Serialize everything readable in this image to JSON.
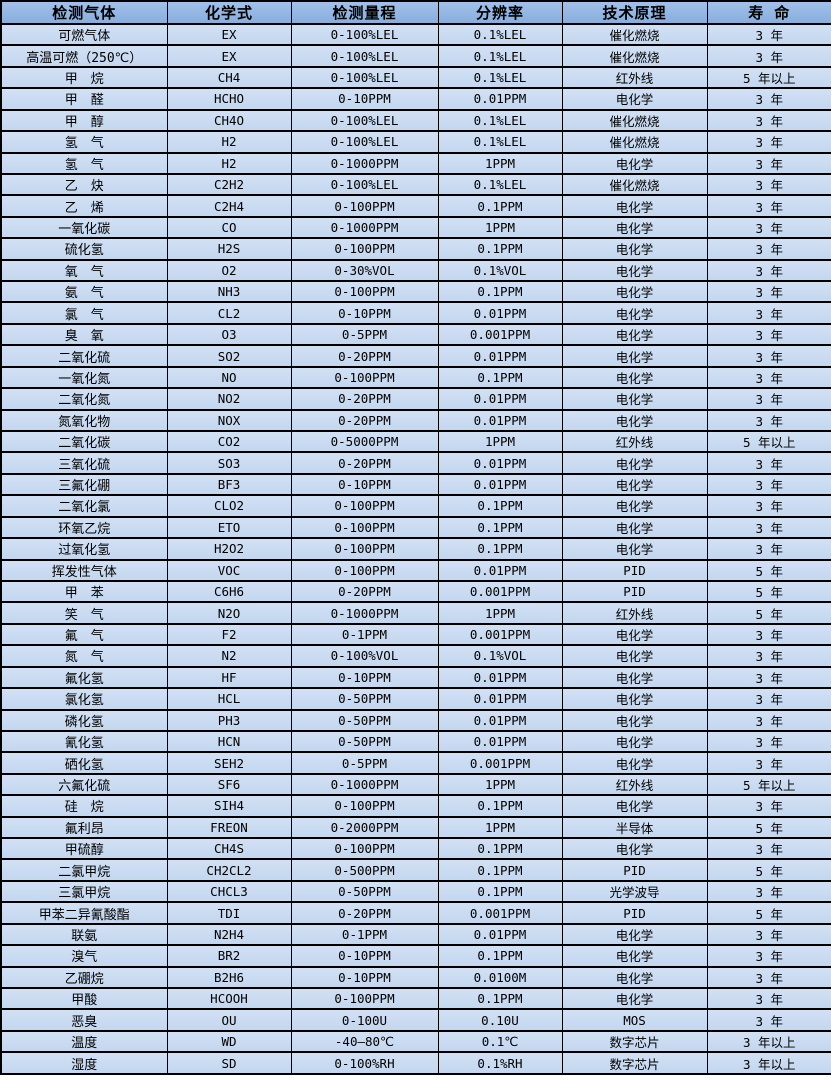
{
  "colors": {
    "header_bg": "#8DB4E2",
    "row_bg": "#C5D9F1",
    "border": "#000000",
    "text": "#000000"
  },
  "table": {
    "headers": [
      "检测气体",
      "化学式",
      "检测量程",
      "分辨率",
      "技术原理",
      "寿 命"
    ],
    "column_names": [
      "gas-name",
      "formula",
      "range",
      "resolution",
      "principle",
      "lifespan"
    ],
    "rows": [
      [
        "可燃气体",
        "EX",
        "0-100%LEL",
        "0.1%LEL",
        "催化燃烧",
        "3 年"
      ],
      [
        "高温可燃（250℃）",
        "EX",
        "0-100%LEL",
        "0.1%LEL",
        "催化燃烧",
        "3 年"
      ],
      [
        "甲　烷",
        "CH4",
        "0-100%LEL",
        "0.1%LEL",
        "红外线",
        "5 年以上"
      ],
      [
        "甲　醛",
        "HCHO",
        "0-10PPM",
        "0.01PPM",
        "电化学",
        "3 年"
      ],
      [
        "甲　醇",
        "CH4O",
        "0-100%LEL",
        "0.1%LEL",
        "催化燃烧",
        "3 年"
      ],
      [
        "氢　气",
        "H2",
        "0-100%LEL",
        "0.1%LEL",
        "催化燃烧",
        "3 年"
      ],
      [
        "氢　气",
        "H2",
        "0-1000PPM",
        "1PPM",
        "电化学",
        "3 年"
      ],
      [
        "乙　炔",
        "C2H2",
        "0-100%LEL",
        "0.1%LEL",
        "催化燃烧",
        "3 年"
      ],
      [
        "乙　烯",
        "C2H4",
        "0-100PPM",
        "0.1PPM",
        "电化学",
        "3 年"
      ],
      [
        "一氧化碳",
        "CO",
        "0-1000PPM",
        "1PPM",
        "电化学",
        "3 年"
      ],
      [
        "硫化氢",
        "H2S",
        "0-100PPM",
        "0.1PPM",
        "电化学",
        "3 年"
      ],
      [
        "氧　气",
        "O2",
        "0-30%VOL",
        "0.1%VOL",
        "电化学",
        "3 年"
      ],
      [
        "氨　气",
        "NH3",
        "0-100PPM",
        "0.1PPM",
        "电化学",
        "3 年"
      ],
      [
        "氯　气",
        "CL2",
        "0-10PPM",
        "0.01PPM",
        "电化学",
        "3 年"
      ],
      [
        "臭　氧",
        "O3",
        "0-5PPM",
        "0.001PPM",
        "电化学",
        "3 年"
      ],
      [
        "二氧化硫",
        "SO2",
        "0-20PPM",
        "0.01PPM",
        "电化学",
        "3 年"
      ],
      [
        "一氧化氮",
        "NO",
        "0-100PPM",
        "0.1PPM",
        "电化学",
        "3 年"
      ],
      [
        "二氧化氮",
        "NO2",
        "0-20PPM",
        "0.01PPM",
        "电化学",
        "3 年"
      ],
      [
        "氮氧化物",
        "NOX",
        "0-20PPM",
        "0.01PPM",
        "电化学",
        "3 年"
      ],
      [
        "二氧化碳",
        "CO2",
        "0-5000PPM",
        "1PPM",
        "红外线",
        "5 年以上"
      ],
      [
        "三氧化硫",
        "SO3",
        "0-20PPM",
        "0.01PPM",
        "电化学",
        "3 年"
      ],
      [
        "三氟化硼",
        "BF3",
        "0-10PPM",
        "0.01PPM",
        "电化学",
        "3 年"
      ],
      [
        "二氧化氯",
        "CLO2",
        "0-100PPM",
        "0.1PPM",
        "电化学",
        "3 年"
      ],
      [
        "环氧乙烷",
        "ETO",
        "0-100PPM",
        "0.1PPM",
        "电化学",
        "3 年"
      ],
      [
        "过氧化氢",
        "H2O2",
        "0-100PPM",
        "0.1PPM",
        "电化学",
        "3 年"
      ],
      [
        "挥发性气体",
        "VOC",
        "0-100PPM",
        "0.01PPM",
        "PID",
        "5 年"
      ],
      [
        "甲　苯",
        "C6H6",
        "0-20PPM",
        "0.001PPM",
        "PID",
        "5 年"
      ],
      [
        "笑　气",
        "N2O",
        "0-1000PPM",
        "1PPM",
        "红外线",
        "5 年"
      ],
      [
        "氟　气",
        "F2",
        "0-1PPM",
        "0.001PPM",
        "电化学",
        "3 年"
      ],
      [
        "氮　气",
        "N2",
        "0-100%VOL",
        "0.1%VOL",
        "电化学",
        "3 年"
      ],
      [
        "氟化氢",
        "HF",
        "0-10PPM",
        "0.01PPM",
        "电化学",
        "3 年"
      ],
      [
        "氯化氢",
        "HCL",
        "0-50PPM",
        "0.01PPM",
        "电化学",
        "3 年"
      ],
      [
        "磷化氢",
        "PH3",
        "0-50PPM",
        "0.01PPM",
        "电化学",
        "3 年"
      ],
      [
        "氰化氢",
        "HCN",
        "0-50PPM",
        "0.01PPM",
        "电化学",
        "3 年"
      ],
      [
        "硒化氢",
        "SEH2",
        "0-5PPM",
        "0.001PPM",
        "电化学",
        "3 年"
      ],
      [
        "六氟化硫",
        "SF6",
        "0-1000PPM",
        "1PPM",
        "红外线",
        "5 年以上"
      ],
      [
        "硅　烷",
        "SIH4",
        "0-100PPM",
        "0.1PPM",
        "电化学",
        "3 年"
      ],
      [
        "氟利昂",
        "FREON",
        "0-2000PPM",
        "1PPM",
        "半导体",
        "5 年"
      ],
      [
        "甲硫醇",
        "CH4S",
        "0-100PPM",
        "0.1PPM",
        "电化学",
        "3 年"
      ],
      [
        "二氯甲烷",
        "CH2CL2",
        "0-500PPM",
        "0.1PPM",
        "PID",
        "5 年"
      ],
      [
        "三氯甲烷",
        "CHCL3",
        "0-50PPM",
        "0.1PPM",
        "光学波导",
        "3 年"
      ],
      [
        "甲苯二异氰酸酯",
        "TDI",
        "0-20PPM",
        "0.001PPM",
        "PID",
        "5 年"
      ],
      [
        "联氨",
        "N2H4",
        "0-1PPM",
        "0.01PPM",
        "电化学",
        "3 年"
      ],
      [
        "溴气",
        "BR2",
        "0-10PPM",
        "0.1PPM",
        "电化学",
        "3 年"
      ],
      [
        "乙硼烷",
        "B2H6",
        "0-10PPM",
        "0.0100M",
        "电化学",
        "3 年"
      ],
      [
        "甲酸",
        "HCOOH",
        "0-100PPM",
        "0.1PPM",
        "电化学",
        "3 年"
      ],
      [
        "恶臭",
        "OU",
        "0-100U",
        "0.10U",
        "MOS",
        "3 年"
      ],
      [
        "温度",
        "WD",
        "-40—80℃",
        "0.1℃",
        "数字芯片",
        "3 年以上"
      ],
      [
        "湿度",
        "SD",
        "0-100%RH",
        "0.1%RH",
        "数字芯片",
        "3 年以上"
      ]
    ]
  }
}
